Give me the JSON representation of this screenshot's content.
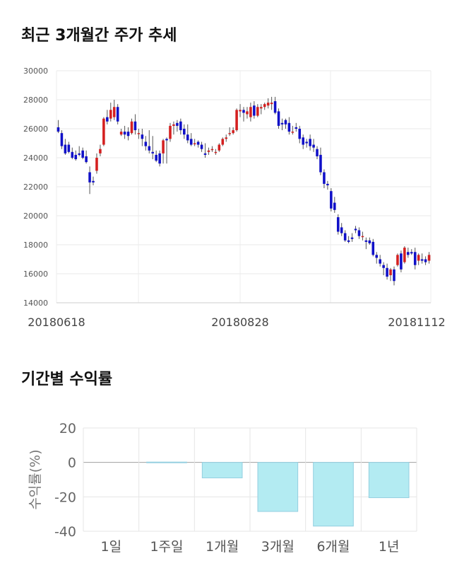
{
  "sections": {
    "price_title": "최근 3개월간 주가 추세",
    "returns_title": "기간별 수익률"
  },
  "chart_data": [
    {
      "type": "candlestick",
      "title": "최근 3개월간 주가 추세",
      "ylim": [
        14000,
        30000
      ],
      "y_ticks": [
        14000,
        16000,
        18000,
        20000,
        22000,
        24000,
        26000,
        28000,
        30000
      ],
      "x_tick_labels": [
        "20180618",
        "20180828",
        "20181112"
      ],
      "grid": true,
      "up_color": "#d42020",
      "down_color": "#1010c8",
      "candles": [
        [
          26100,
          26600,
          25800,
          25700
        ],
        [
          25700,
          25900,
          24800,
          24600
        ],
        [
          24900,
          25300,
          24300,
          24200
        ],
        [
          24900,
          25100,
          24400,
          24300
        ],
        [
          24400,
          24700,
          24000,
          23900
        ],
        [
          24200,
          24500,
          23900,
          23800
        ],
        [
          24300,
          24800,
          24200,
          24100
        ],
        [
          24500,
          24700,
          24000,
          23900
        ],
        [
          24100,
          24500,
          23700,
          23600
        ],
        [
          23000,
          23400,
          22300,
          21500
        ],
        [
          22400,
          22700,
          22300,
          22100
        ],
        [
          23100,
          24300,
          24000,
          22900
        ],
        [
          24300,
          24900,
          24600,
          24100
        ],
        [
          24900,
          26800,
          26700,
          24800
        ],
        [
          26800,
          27300,
          26500,
          26300
        ],
        [
          26700,
          27800,
          27300,
          26500
        ],
        [
          26800,
          28000,
          27500,
          26600
        ],
        [
          27500,
          27700,
          26500,
          26300
        ],
        [
          25600,
          26000,
          25800,
          25500
        ],
        [
          25800,
          26200,
          25600,
          25300
        ],
        [
          25800,
          26100,
          25500,
          25200
        ],
        [
          25700,
          26700,
          26500,
          25600
        ],
        [
          26500,
          27000,
          25900,
          25600
        ],
        [
          25700,
          26000,
          25700,
          25300
        ],
        [
          25600,
          26000,
          25300,
          24800
        ],
        [
          25100,
          25500,
          24800,
          24500
        ],
        [
          24800,
          25900,
          24500,
          24300
        ],
        [
          24400,
          25500,
          24300,
          23900
        ],
        [
          24200,
          24500,
          23800,
          23700
        ],
        [
          24300,
          24500,
          23600,
          23400
        ],
        [
          24300,
          25300,
          25200,
          23600
        ],
        [
          25300,
          25400,
          25200,
          23600
        ],
        [
          25300,
          26400,
          26200,
          25100
        ],
        [
          26200,
          26500,
          26300,
          25600
        ],
        [
          26400,
          26600,
          26200,
          25800
        ],
        [
          26500,
          26700,
          25900,
          25600
        ],
        [
          26000,
          26300,
          25600,
          25300
        ],
        [
          25600,
          26300,
          25200,
          25000
        ],
        [
          25300,
          25700,
          24900,
          24800
        ],
        [
          25000,
          25300,
          25000,
          24800
        ],
        [
          25100,
          25200,
          24900,
          24700
        ],
        [
          24900,
          25100,
          24600,
          24400
        ],
        [
          24300,
          25000,
          24200,
          24000
        ],
        [
          24400,
          24700,
          24500,
          24200
        ],
        [
          24600,
          24800,
          24600,
          24400
        ],
        [
          24400,
          24600,
          24400,
          24200
        ],
        [
          24500,
          25000,
          24900,
          24400
        ],
        [
          24900,
          25400,
          25300,
          24800
        ],
        [
          25300,
          25600,
          25400,
          25100
        ],
        [
          25700,
          26100,
          25700,
          25500
        ],
        [
          25700,
          26100,
          25900,
          25600
        ],
        [
          25900,
          27400,
          27300,
          25800
        ],
        [
          27200,
          27700,
          27300,
          26800
        ],
        [
          27300,
          27500,
          27100,
          26500
        ],
        [
          27000,
          27500,
          27200,
          26700
        ],
        [
          26800,
          27800,
          27500,
          26500
        ],
        [
          27600,
          27900,
          26900,
          26700
        ],
        [
          26900,
          27700,
          27500,
          26800
        ],
        [
          27400,
          27700,
          27500,
          27000
        ],
        [
          27500,
          27800,
          27700,
          27300
        ],
        [
          27600,
          28100,
          27800,
          27400
        ],
        [
          27700,
          28200,
          27800,
          27300
        ],
        [
          27900,
          28200,
          27100,
          27000
        ],
        [
          27200,
          27400,
          26200,
          26000
        ],
        [
          26400,
          26700,
          26300,
          25900
        ],
        [
          26600,
          26700,
          26300,
          26000
        ],
        [
          26400,
          26800,
          25800,
          25600
        ],
        [
          25800,
          26200,
          25800,
          25600
        ],
        [
          26100,
          26400,
          26000,
          25800
        ],
        [
          26000,
          26200,
          25300,
          25000
        ],
        [
          25400,
          25600,
          24900,
          24600
        ],
        [
          25100,
          25300,
          25000,
          24700
        ],
        [
          25300,
          25600,
          24800,
          24500
        ],
        [
          24900,
          25300,
          24700,
          24400
        ],
        [
          24600,
          24800,
          24100,
          23900
        ],
        [
          24200,
          24700,
          23000,
          22800
        ],
        [
          23000,
          23200,
          22200,
          21900
        ],
        [
          22200,
          22400,
          22100,
          21800
        ],
        [
          21700,
          21900,
          20500,
          20300
        ],
        [
          20900,
          21300,
          20400,
          20200
        ],
        [
          19900,
          20100,
          18900,
          18700
        ],
        [
          19200,
          19500,
          18800,
          18600
        ],
        [
          18800,
          19000,
          18300,
          18200
        ],
        [
          18300,
          18600,
          18200,
          18100
        ],
        [
          18500,
          18800,
          18400,
          18200
        ],
        [
          19100,
          19300,
          19000,
          18800
        ],
        [
          19000,
          19200,
          18600,
          18400
        ],
        [
          18600,
          18900,
          18600,
          18300
        ],
        [
          18300,
          18500,
          18200,
          17700
        ],
        [
          18300,
          18500,
          18100,
          18000
        ],
        [
          18200,
          18400,
          17300,
          17200
        ],
        [
          17300,
          17500,
          17100,
          16700
        ],
        [
          17000,
          17300,
          16700,
          16500
        ],
        [
          16600,
          16800,
          16400,
          15900
        ],
        [
          16400,
          16700,
          15800,
          15600
        ],
        [
          15900,
          16400,
          16300,
          15500
        ],
        [
          16300,
          16500,
          15500,
          15200
        ],
        [
          16600,
          17400,
          17300,
          16500
        ],
        [
          17400,
          17600,
          16300,
          16100
        ],
        [
          16800,
          17900,
          17800,
          16700
        ],
        [
          17500,
          17800,
          17300,
          17100
        ],
        [
          17500,
          17700,
          17400,
          17300
        ],
        [
          17500,
          17800,
          16600,
          16300
        ],
        [
          16900,
          17400,
          17300,
          16600
        ],
        [
          17000,
          17400,
          16900,
          16700
        ],
        [
          17000,
          17200,
          16800,
          16600
        ],
        [
          16900,
          17500,
          17300,
          16700
        ]
      ]
    },
    {
      "type": "bar",
      "title": "기간별 수익률",
      "ylabel": "수익률(%)",
      "categories": [
        "1일",
        "1주일",
        "1개월",
        "3개월",
        "6개월",
        "1년"
      ],
      "values": [
        0,
        0.2,
        -9,
        -28.5,
        -37,
        -20.5
      ],
      "ylim": [
        -40,
        20
      ],
      "y_ticks": [
        20,
        0,
        -20,
        -40
      ],
      "grid": true,
      "bar_color": "#b3ebf2",
      "bar_edge_color": "#94cfe0"
    }
  ]
}
